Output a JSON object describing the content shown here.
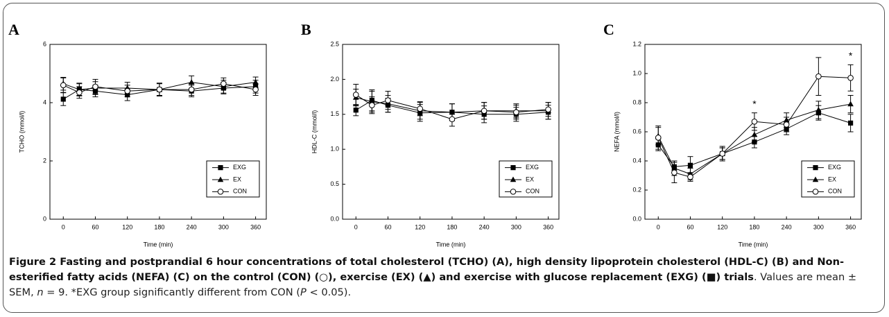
{
  "chart_data": [
    {
      "type": "line",
      "panel": "A",
      "y_label": "TCHO (mmol/l)",
      "x_label": "Time (min)",
      "x": [
        0,
        30,
        60,
        120,
        180,
        240,
        300,
        360
      ],
      "xlim": [
        -25,
        380
      ],
      "xticks": [
        0,
        60,
        120,
        180,
        240,
        300,
        360
      ],
      "ylim": [
        0,
        6
      ],
      "yticks": [
        0,
        2,
        4,
        6
      ],
      "legend": "lower right",
      "series": [
        {
          "name": "EXG",
          "color": "#000000",
          "marker": "square",
          "values": [
            4.12,
            4.45,
            4.4,
            4.27,
            4.45,
            4.4,
            4.5,
            4.55
          ],
          "errors": [
            0.22,
            0.2,
            0.2,
            0.2,
            0.22,
            0.2,
            0.2,
            0.22
          ]
        },
        {
          "name": "EX",
          "color": "#000000",
          "marker": "triangle",
          "values": [
            4.65,
            4.45,
            4.5,
            4.5,
            4.45,
            4.7,
            4.55,
            4.7
          ],
          "errors": [
            0.22,
            0.22,
            0.22,
            0.2,
            0.22,
            0.22,
            0.22,
            0.18
          ]
        },
        {
          "name": "CON",
          "color": "#000000",
          "marker": "circle",
          "values": [
            4.6,
            4.35,
            4.55,
            4.4,
            4.45,
            4.45,
            4.65,
            4.45
          ],
          "errors": [
            0.25,
            0.2,
            0.25,
            0.2,
            0.2,
            0.2,
            0.2,
            0.2
          ]
        }
      ]
    },
    {
      "type": "line",
      "panel": "B",
      "y_label": "HDL-C (mmol/l)",
      "x_label": "Time (min)",
      "x": [
        0,
        30,
        60,
        120,
        180,
        240,
        300,
        360
      ],
      "xlim": [
        -25,
        380
      ],
      "xticks": [
        0,
        60,
        120,
        180,
        240,
        300,
        360
      ],
      "ylim": [
        0,
        2.5
      ],
      "yticks": [
        {
          "value": 0,
          "label": "0.0"
        },
        0.5,
        {
          "value": 1,
          "label": "1.0"
        },
        1.5,
        {
          "value": 2,
          "label": "2.0"
        },
        2.5
      ],
      "legend": "lower right",
      "series": [
        {
          "name": "EXG",
          "color": "#000000",
          "marker": "square",
          "values": [
            1.56,
            1.7,
            1.63,
            1.52,
            1.53,
            1.5,
            1.5,
            1.53
          ],
          "errors": [
            0.08,
            0.15,
            0.1,
            0.12,
            0.12,
            0.12,
            0.1,
            0.1
          ]
        },
        {
          "name": "EX",
          "color": "#000000",
          "marker": "triangle",
          "values": [
            1.74,
            1.68,
            1.65,
            1.55,
            1.53,
            1.55,
            1.55,
            1.55
          ],
          "errors": [
            0.12,
            0.15,
            0.12,
            0.12,
            0.12,
            0.12,
            0.1,
            0.12
          ]
        },
        {
          "name": "CON",
          "color": "#000000",
          "marker": "circle",
          "values": [
            1.78,
            1.63,
            1.7,
            1.58,
            1.43,
            1.55,
            1.53,
            1.57
          ],
          "errors": [
            0.15,
            0.12,
            0.13,
            0.1,
            0.1,
            0.12,
            0.1,
            0.1
          ]
        }
      ]
    },
    {
      "type": "line",
      "panel": "C",
      "y_label": "NEFA (mmol/l)",
      "x_label": "Time (min)",
      "x": [
        0,
        30,
        60,
        120,
        180,
        240,
        300,
        360
      ],
      "xlim": [
        -25,
        380
      ],
      "xticks": [
        0,
        60,
        120,
        180,
        240,
        300,
        360
      ],
      "ylim": [
        0,
        1.2
      ],
      "yticks": [
        {
          "value": 0,
          "label": "0.0"
        },
        0.2,
        0.4,
        0.6,
        0.8,
        {
          "value": 1,
          "label": "1.0"
        },
        1.2
      ],
      "legend": "lower right",
      "annotations": [
        {
          "x": 180,
          "label": "*"
        },
        {
          "x": 360,
          "label": "*"
        }
      ],
      "series": [
        {
          "name": "EXG",
          "color": "#000000",
          "marker": "square",
          "values": [
            0.51,
            0.36,
            0.37,
            0.45,
            0.53,
            0.62,
            0.73,
            0.66
          ],
          "errors": [
            0.04,
            0.04,
            0.06,
            0.04,
            0.04,
            0.04,
            0.05,
            0.06
          ]
        },
        {
          "name": "EX",
          "color": "#000000",
          "marker": "triangle",
          "values": [
            0.57,
            0.35,
            0.31,
            0.45,
            0.58,
            0.68,
            0.75,
            0.79
          ],
          "errors": [
            0.06,
            0.05,
            0.04,
            0.04,
            0.05,
            0.05,
            0.06,
            0.06
          ]
        },
        {
          "name": "CON",
          "color": "#000000",
          "marker": "circle",
          "values": [
            0.56,
            0.32,
            0.29,
            0.45,
            0.67,
            0.65,
            0.98,
            0.97
          ],
          "errors": [
            0.08,
            0.07,
            0.03,
            0.05,
            0.06,
            0.05,
            0.13,
            0.09
          ]
        }
      ]
    }
  ],
  "caption": {
    "title": "Figure 2 Fasting and postprandial 6 hour concentrations of total cholesterol (TCHO) (A), high density lipoprotein cholesterol (HDL-C) (B) and Non-esterified fatty acids (NEFA) (C) on the control (CON) (○), exercise (EX) (▲) and exercise with glucose replacement (EXG) (■) trials",
    "body": [
      ". Values are mean ± SEM, ",
      "n",
      " = 9. *EXG group significantly different from CON (",
      "P",
      " < 0.05)."
    ]
  }
}
